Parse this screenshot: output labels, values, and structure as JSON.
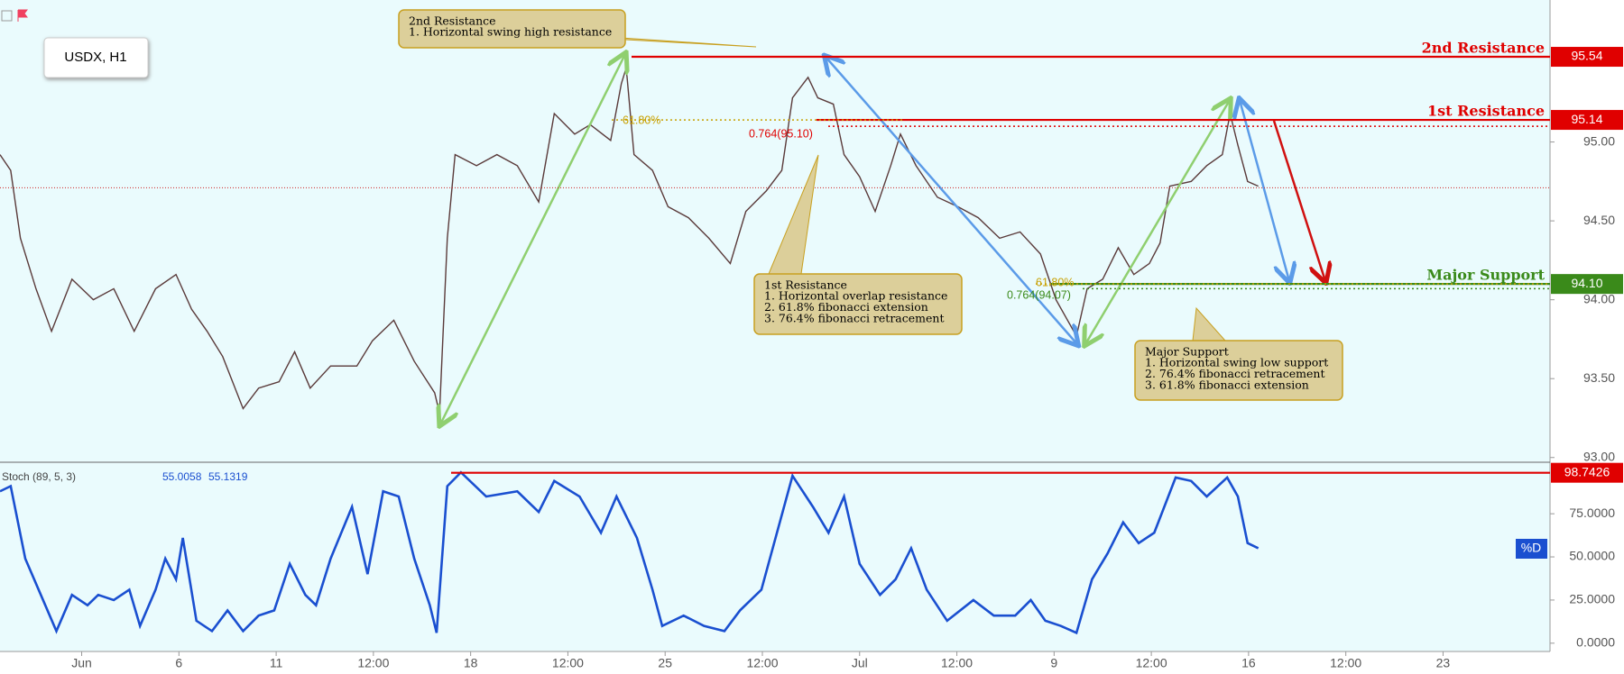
{
  "chart_data": [
    {
      "type": "line",
      "title": "USDX, H1",
      "xlim": [
        -0.84,
        15.1
      ],
      "ylim": [
        92.97,
        95.9
      ],
      "yticks": [
        {
          "value": 93.0,
          "label": "93.00"
        },
        {
          "value": 93.5,
          "label": "93.50"
        },
        {
          "value": 94.0,
          "label": "94.00"
        },
        {
          "value": 94.5,
          "label": "94.50"
        },
        {
          "value": 95.0,
          "label": "95.00"
        }
      ],
      "x": [
        -0.84,
        -0.73,
        -0.63,
        -0.47,
        -0.31,
        -0.1,
        0.12,
        0.33,
        0.54,
        0.76,
        0.97,
        1.13,
        1.29,
        1.45,
        1.66,
        1.82,
        2.03,
        2.19,
        2.35,
        2.56,
        2.83,
        2.99,
        3.21,
        3.42,
        3.63,
        3.68,
        3.76,
        3.84,
        4.06,
        4.27,
        4.48,
        4.7,
        4.86,
        5.07,
        5.23,
        5.44,
        5.55,
        5.6,
        5.68,
        5.87,
        6.03,
        6.24,
        6.45,
        6.67,
        6.83,
        7.04,
        7.2,
        7.31,
        7.47,
        7.57,
        7.73,
        7.84,
        8.0,
        8.16,
        8.32,
        8.42,
        8.58,
        8.8,
        9.01,
        9.22,
        9.44,
        9.65,
        9.86,
        10.02,
        10.23,
        10.34,
        10.5,
        10.66,
        10.82,
        10.98,
        11.09,
        11.19,
        11.41,
        11.57,
        11.73,
        11.81,
        11.89,
        11.99,
        12.1
      ],
      "series": [
        {
          "color": "#5a3a3a",
          "values": [
            94.92,
            94.82,
            94.39,
            94.07,
            93.8,
            94.13,
            94.0,
            94.07,
            93.8,
            94.07,
            94.16,
            93.94,
            93.8,
            93.64,
            93.31,
            93.44,
            93.48,
            93.67,
            93.44,
            93.58,
            93.58,
            93.74,
            93.87,
            93.61,
            93.41,
            93.28,
            94.39,
            94.92,
            94.85,
            94.92,
            94.85,
            94.62,
            95.18,
            95.05,
            95.11,
            95.01,
            95.37,
            95.47,
            94.92,
            94.82,
            94.59,
            94.52,
            94.39,
            94.23,
            94.56,
            94.69,
            94.82,
            95.28,
            95.41,
            95.28,
            95.24,
            94.92,
            94.78,
            94.56,
            94.85,
            95.05,
            94.85,
            94.65,
            94.59,
            94.52,
            94.39,
            94.43,
            94.29,
            94.0,
            93.77,
            94.07,
            94.13,
            94.33,
            94.16,
            94.23,
            94.36,
            94.72,
            94.75,
            94.85,
            94.92,
            95.18,
            94.98,
            94.75,
            94.72
          ]
        }
      ],
      "last_price": 94.71,
      "levels": [
        {
          "name": "2nd Resistance",
          "value": 95.54,
          "label": "95.54",
          "color": "#e00000"
        },
        {
          "name": "1st Resistance",
          "value": 95.14,
          "label": "95.14",
          "color": "#e00000"
        },
        {
          "name": "Major Support",
          "value": 94.1,
          "label": "94.10",
          "color": "#3a8a1a"
        }
      ],
      "fib_labels": [
        {
          "label": "61.80%",
          "value": 95.14,
          "color": "#c8a000"
        },
        {
          "label": "0.764(95.10)",
          "value": 95.1,
          "color": "#e00000"
        },
        {
          "label": "61.80%",
          "value": 94.1,
          "color": "#c8a000"
        },
        {
          "label": "0.764(94.07)",
          "value": 94.07,
          "color": "#3a8a1a"
        }
      ],
      "callouts": [
        {
          "title": "2nd Resistance",
          "lines": [
            "1. Horizontal swing high resistance"
          ]
        },
        {
          "title": "1st Resistance",
          "lines": [
            "1. Horizontal overlap resistance",
            "2. 61.8% fibonacci extension",
            "3. 76.4% fibonacci retracement"
          ]
        },
        {
          "title": "Major Support",
          "lines": [
            "1. Horizontal swing low support",
            "2. 76.4% fibonacci retracement",
            "3. 61.8% fibonacci extension"
          ]
        }
      ]
    },
    {
      "type": "line",
      "title": "Stoch (89, 5, 3)",
      "readouts": [
        "55.0058",
        "55.1319"
      ],
      "xlim": [
        -0.84,
        15.1
      ],
      "ylim": [
        -4.8,
        103.8
      ],
      "yticks": [
        {
          "value": 0,
          "label": "0.0000"
        },
        {
          "value": 25,
          "label": "25.0000"
        },
        {
          "value": 50,
          "label": "50.0000"
        },
        {
          "value": 75,
          "label": "75.0000"
        }
      ],
      "xticks": [
        {
          "value": 0,
          "label": "Jun"
        },
        {
          "value": 1,
          "label": "6"
        },
        {
          "value": 2,
          "label": "11"
        },
        {
          "value": 3,
          "label": "12:00"
        },
        {
          "value": 4,
          "label": "18"
        },
        {
          "value": 5,
          "label": "12:00"
        },
        {
          "value": 6,
          "label": "25"
        },
        {
          "value": 7,
          "label": "12:00"
        },
        {
          "value": 8,
          "label": "Jul"
        },
        {
          "value": 9,
          "label": "12:00"
        },
        {
          "value": 10,
          "label": "9"
        },
        {
          "value": 11,
          "label": "12:00"
        },
        {
          "value": 12,
          "label": "16"
        },
        {
          "value": 13,
          "label": "12:00"
        },
        {
          "value": 14,
          "label": "23"
        }
      ],
      "level": {
        "value": 98.7426,
        "color": "#e00000"
      },
      "x": [
        -0.84,
        -0.73,
        -0.58,
        -0.42,
        -0.26,
        -0.1,
        0.06,
        0.17,
        0.33,
        0.49,
        0.6,
        0.76,
        0.86,
        0.97,
        1.04,
        1.18,
        1.34,
        1.5,
        1.66,
        1.82,
        1.98,
        2.14,
        2.3,
        2.41,
        2.56,
        2.78,
        2.94,
        3.1,
        3.26,
        3.42,
        3.58,
        3.65,
        3.76,
        3.9,
        4.16,
        4.48,
        4.7,
        4.86,
        5.12,
        5.34,
        5.5,
        5.71,
        5.87,
        5.97,
        6.19,
        6.4,
        6.61,
        6.77,
        6.99,
        7.31,
        7.52,
        7.68,
        7.84,
        8.0,
        8.21,
        8.37,
        8.53,
        8.69,
        8.9,
        9.17,
        9.38,
        9.6,
        9.76,
        9.91,
        10.07,
        10.23,
        10.39,
        10.55,
        10.71,
        10.87,
        11.03,
        11.25,
        11.41,
        11.57,
        11.78,
        11.89,
        11.99,
        12.1
      ],
      "series": [
        {
          "name": "%D",
          "color": "#1a4fd0",
          "values": [
            88,
            91,
            49,
            28,
            7,
            28,
            22,
            28,
            25,
            31,
            10,
            31,
            49,
            37,
            61,
            13,
            7,
            19,
            7,
            16,
            19,
            46,
            28,
            22,
            49,
            79,
            40,
            88,
            85,
            49,
            22,
            6,
            91,
            99,
            85,
            88,
            76,
            94,
            85,
            64,
            85,
            61,
            31,
            10,
            16,
            10,
            7,
            19,
            31,
            97,
            79,
            64,
            85,
            46,
            28,
            37,
            55,
            31,
            13,
            25,
            16,
            16,
            25,
            13,
            10,
            6,
            37,
            52,
            70,
            58,
            64,
            96,
            94,
            85,
            96,
            85,
            58,
            55
          ]
        }
      ]
    }
  ]
}
